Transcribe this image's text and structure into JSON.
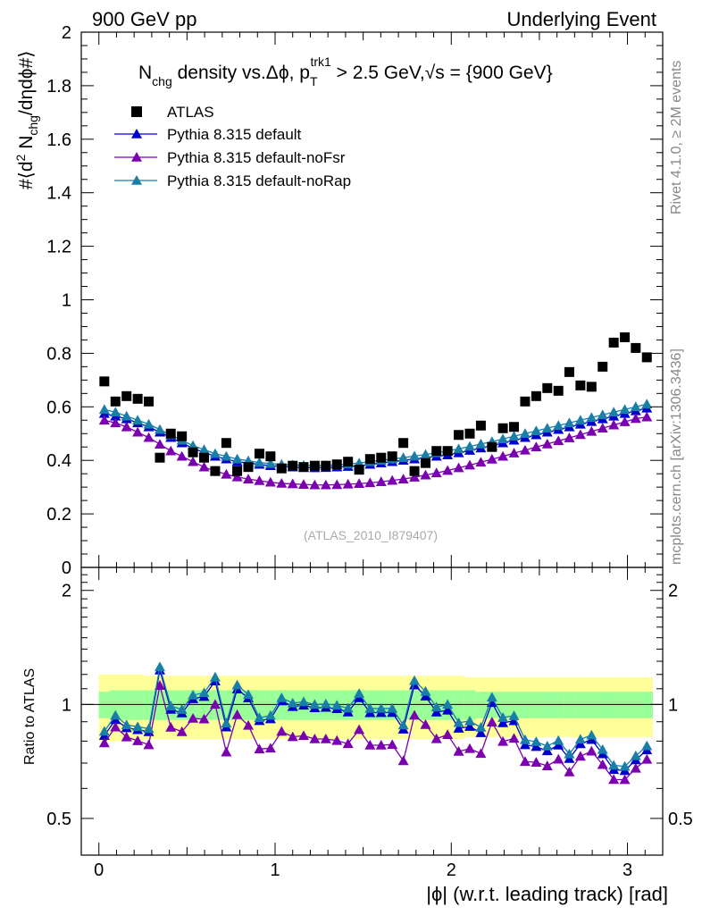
{
  "header": {
    "left": "900 GeV pp",
    "right": "Underlying Event"
  },
  "side_labels": {
    "rivet": "Rivet 4.1.0, ≥ 2M events",
    "mcplots": "mcplots.cern.ch [arXiv:1306.3436]"
  },
  "colors": {
    "data": "#000000",
    "default": "#0000cc",
    "noFsr": "#7a00b0",
    "noRap": "#1a7fa8",
    "band_outer": "#ffff99",
    "band_inner": "#99ff99"
  },
  "chart_data": [
    {
      "panel": "main",
      "type": "scatter",
      "title_parts": [
        "N",
        "chg",
        " density vs.Δϕ, p",
        "T",
        "trk1",
        " > 2.5 GeV,",
        "√s",
        " = {900 GeV}"
      ],
      "ylabel": "#⟨d² N_chg/dηdϕ#⟩",
      "ylabel_parts": [
        "#⟨d",
        "2",
        " N",
        "chg",
        "/dηdϕ#⟩"
      ],
      "watermark": "(ATLAS_2010_I879407)",
      "xlim": [
        -0.1,
        3.2
      ],
      "ylim": [
        0,
        2
      ],
      "yticks": [
        0,
        0.2,
        0.4,
        0.6,
        0.8,
        1,
        1.2,
        1.4,
        1.6,
        1.8,
        2
      ],
      "ytick_labels": [
        "0",
        "0.2",
        "0.4",
        "0.6",
        "0.8",
        "1",
        "1.2",
        "1.4",
        "1.6",
        "1.8",
        "2"
      ],
      "legend": [
        "ATLAS",
        "Pythia 8.315 default",
        "Pythia 8.315 default-noFsr",
        "Pythia 8.315 default-noRap"
      ],
      "x": [
        0.031,
        0.094,
        0.157,
        0.22,
        0.283,
        0.346,
        0.408,
        0.471,
        0.534,
        0.597,
        0.66,
        0.723,
        0.785,
        0.848,
        0.911,
        0.974,
        1.037,
        1.1,
        1.162,
        1.225,
        1.288,
        1.351,
        1.414,
        1.477,
        1.539,
        1.602,
        1.665,
        1.728,
        1.791,
        1.854,
        1.916,
        1.979,
        2.042,
        2.105,
        2.168,
        2.231,
        2.293,
        2.356,
        2.419,
        2.482,
        2.545,
        2.608,
        2.67,
        2.733,
        2.796,
        2.859,
        2.922,
        2.985,
        3.047,
        3.11
      ],
      "series": [
        {
          "name": "ATLAS",
          "marker": "square",
          "values": [
            0.695,
            0.62,
            0.64,
            0.63,
            0.62,
            0.41,
            0.5,
            0.49,
            0.43,
            0.41,
            0.36,
            0.465,
            0.36,
            0.375,
            0.425,
            0.415,
            0.37,
            0.38,
            0.375,
            0.38,
            0.38,
            0.385,
            0.395,
            0.365,
            0.405,
            0.41,
            0.415,
            0.465,
            0.36,
            0.39,
            0.435,
            0.435,
            0.495,
            0.5,
            0.53,
            0.45,
            0.52,
            0.525,
            0.62,
            0.64,
            0.67,
            0.66,
            0.73,
            0.68,
            0.675,
            0.75,
            0.84,
            0.86,
            0.82,
            0.785
          ]
        },
        {
          "name": "Pythia 8.315 default",
          "marker": "triangle",
          "values": [
            0.575,
            0.565,
            0.555,
            0.54,
            0.525,
            0.505,
            0.485,
            0.465,
            0.445,
            0.43,
            0.415,
            0.405,
            0.395,
            0.39,
            0.385,
            0.38,
            0.378,
            0.375,
            0.373,
            0.372,
            0.373,
            0.375,
            0.377,
            0.38,
            0.385,
            0.39,
            0.395,
            0.4,
            0.405,
            0.41,
            0.415,
            0.42,
            0.428,
            0.437,
            0.446,
            0.455,
            0.465,
            0.475,
            0.485,
            0.495,
            0.505,
            0.515,
            0.525,
            0.535,
            0.545,
            0.555,
            0.565,
            0.575,
            0.585,
            0.595
          ]
        },
        {
          "name": "Pythia 8.315 default-noFsr",
          "marker": "triangle",
          "values": [
            0.55,
            0.54,
            0.525,
            0.505,
            0.485,
            0.46,
            0.435,
            0.415,
            0.395,
            0.375,
            0.36,
            0.348,
            0.338,
            0.33,
            0.324,
            0.318,
            0.314,
            0.312,
            0.31,
            0.308,
            0.308,
            0.309,
            0.311,
            0.313,
            0.316,
            0.32,
            0.325,
            0.33,
            0.337,
            0.345,
            0.353,
            0.362,
            0.372,
            0.382,
            0.393,
            0.404,
            0.415,
            0.427,
            0.438,
            0.45,
            0.461,
            0.473,
            0.484,
            0.496,
            0.508,
            0.52,
            0.532,
            0.544,
            0.556,
            0.562
          ]
        },
        {
          "name": "Pythia 8.315 default-noRap",
          "marker": "triangle",
          "values": [
            0.59,
            0.58,
            0.565,
            0.55,
            0.535,
            0.515,
            0.495,
            0.475,
            0.455,
            0.44,
            0.425,
            0.415,
            0.405,
            0.398,
            0.392,
            0.388,
            0.385,
            0.383,
            0.381,
            0.38,
            0.381,
            0.383,
            0.386,
            0.39,
            0.395,
            0.4,
            0.405,
            0.41,
            0.416,
            0.422,
            0.428,
            0.435,
            0.443,
            0.452,
            0.461,
            0.47,
            0.48,
            0.49,
            0.5,
            0.51,
            0.52,
            0.53,
            0.54,
            0.55,
            0.56,
            0.57,
            0.58,
            0.59,
            0.6,
            0.61
          ]
        }
      ]
    },
    {
      "panel": "ratio",
      "type": "line",
      "ylabel": "Ratio to ATLAS",
      "xlabel": "|ϕ| (w.r.t. leading track) [rad]",
      "xlim": [
        -0.1,
        3.2
      ],
      "ylim": [
        0.4,
        2.3
      ],
      "yscale": "log",
      "xticks": [
        0,
        1,
        2,
        3
      ],
      "xtick_labels": [
        "0",
        "1",
        "2",
        "3"
      ],
      "yticks": [
        0.5,
        1,
        2
      ],
      "ytick_labels": [
        "0.5",
        "1",
        "2"
      ],
      "band_inner": [
        0.08,
        0.09,
        0.09,
        0.09,
        0.09,
        0.09,
        0.09,
        0.09,
        0.09,
        0.09,
        0.09,
        0.09,
        0.09,
        0.09,
        0.09,
        0.09,
        0.09,
        0.09,
        0.09,
        0.09,
        0.09,
        0.09,
        0.09,
        0.09,
        0.09,
        0.09,
        0.09,
        0.09,
        0.09,
        0.09,
        0.09,
        0.09,
        0.09,
        0.09,
        0.08,
        0.08,
        0.08,
        0.08,
        0.08,
        0.08,
        0.08,
        0.08,
        0.08,
        0.08,
        0.08,
        0.08,
        0.08,
        0.08,
        0.08,
        0.08
      ],
      "band_outer": [
        0.2,
        0.2,
        0.2,
        0.2,
        0.19,
        0.19,
        0.19,
        0.19,
        0.19,
        0.19,
        0.19,
        0.19,
        0.19,
        0.19,
        0.19,
        0.19,
        0.19,
        0.19,
        0.19,
        0.19,
        0.19,
        0.19,
        0.19,
        0.19,
        0.19,
        0.19,
        0.19,
        0.19,
        0.19,
        0.19,
        0.19,
        0.19,
        0.19,
        0.18,
        0.18,
        0.18,
        0.18,
        0.18,
        0.18,
        0.18,
        0.18,
        0.18,
        0.18,
        0.18,
        0.18,
        0.18,
        0.18,
        0.18,
        0.18,
        0.18
      ]
    }
  ]
}
